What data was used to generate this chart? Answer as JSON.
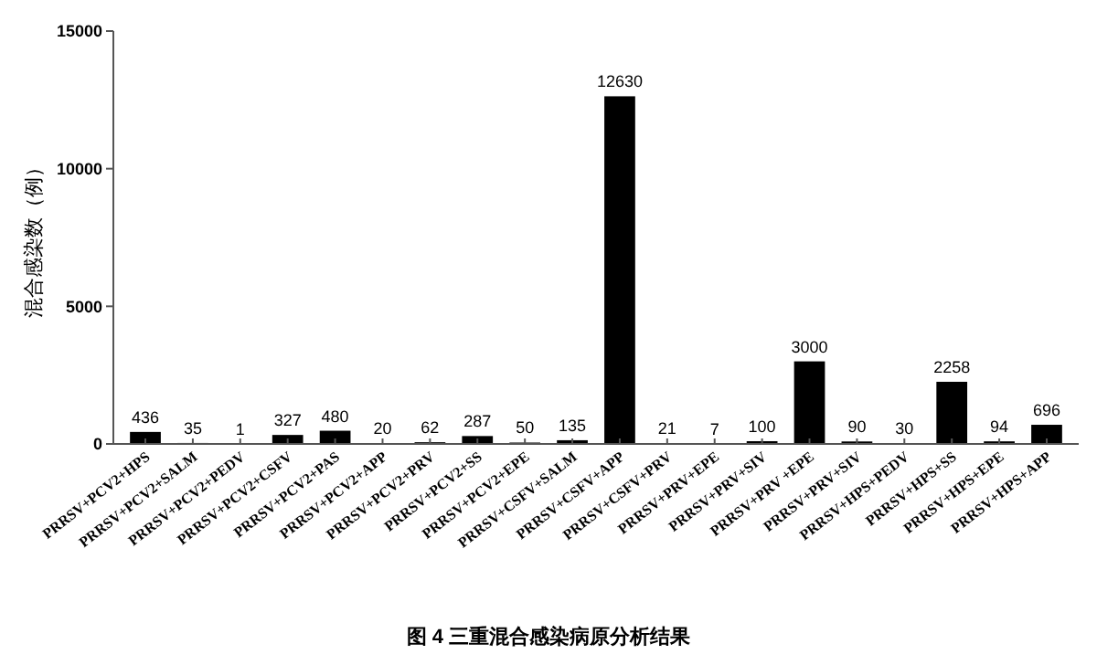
{
  "chart_data": {
    "type": "bar",
    "title": "图 4 三重混合感染病原分析结果",
    "ylabel": "混合感染数（例）",
    "categories": [
      "PRRSV+PCV2+HPS",
      "PRRSV+PCV2+SALM",
      "PRRSV+PCV2+PEDV",
      "PRRSV+PCV2+CSFV",
      "PRRSV+PCV2+PAS",
      "PRRSV+PCV2+APP",
      "PRRSV+PCV2+PRV",
      "PRRSV+PCV2+SS",
      "PRRSV+PCV2+EPE",
      "PRRSV+CSFV+SALM",
      "PRRSV+CSFV+APP",
      "PRRSV+CSFV+PRV",
      "PRRSV+PRV+EPE",
      "PRRSV+PRV+SIV",
      "PRRSV+PRV +EPE",
      "PRRSV+PRV+SIV",
      "PRRSV+HPS+PEDV",
      "PRRSV+HPS+SS",
      "PRRSV+HPS+EPE",
      "PRRSV+HPS+APP"
    ],
    "values": [
      436,
      35,
      1,
      327,
      480,
      20,
      62,
      287,
      50,
      135,
      12630,
      21,
      7,
      100,
      3000,
      90,
      30,
      2258,
      94,
      696
    ],
    "color": "#000000",
    "ylim": [
      0,
      15000
    ],
    "yticks": [
      0,
      5000,
      10000,
      15000
    ],
    "data_labels": true
  }
}
